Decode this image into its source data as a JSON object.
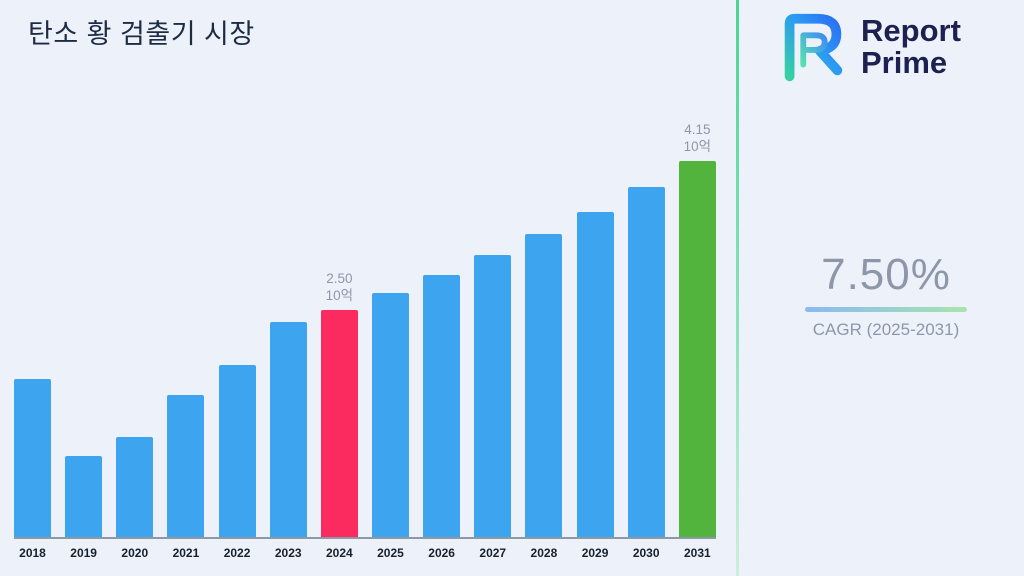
{
  "page": {
    "title": "탄소 황 검출기 시장"
  },
  "logo": {
    "line1": "Report",
    "line2": "Prime"
  },
  "stats": {
    "value": "7.50%",
    "label": "CAGR (2025-2031)"
  },
  "colors": {
    "background": "#edf2fa",
    "divider_green": "#49d694",
    "bar_blue": "#3da5f0",
    "bar_pink": "#fb2b60",
    "bar_green": "#52b43c",
    "accent_navy": "#1c2150",
    "muted_gray": "#8e97a9"
  },
  "chart_data": {
    "type": "bar",
    "title": "탄소 황 검출기 시장",
    "xlabel": "",
    "ylabel": "",
    "unit": "10억",
    "ylim": [
      0,
      4.6
    ],
    "grid": false,
    "legend": "none",
    "categories": [
      "2018",
      "2019",
      "2020",
      "2021",
      "2022",
      "2023",
      "2024",
      "2025",
      "2026",
      "2027",
      "2028",
      "2029",
      "2030",
      "2031"
    ],
    "values": [
      1.74,
      0.89,
      1.1,
      1.57,
      1.9,
      2.37,
      2.5,
      2.69,
      2.89,
      3.11,
      3.34,
      3.59,
      3.86,
      4.15
    ],
    "bar_color": "#3da5f0",
    "highlight": [
      {
        "category": "2024",
        "label_value": "2.50",
        "label_unit": "10억",
        "color": "#fb2b60"
      },
      {
        "category": "2031",
        "label_value": "4.15",
        "label_unit": "10억",
        "color": "#52b43c"
      }
    ]
  }
}
